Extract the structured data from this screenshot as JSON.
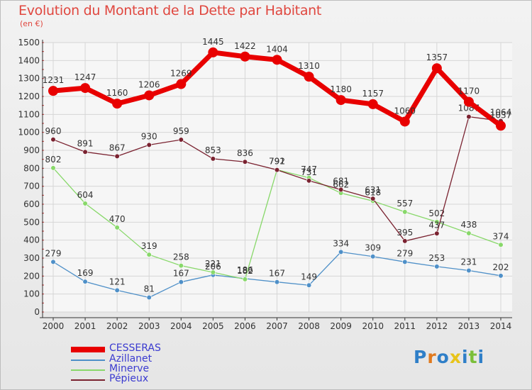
{
  "title": "Evolution du Montant de la Dette par Habitant",
  "subtitle": "(en €)",
  "logo": "Proxiti",
  "chart_data": {
    "type": "line",
    "title": "Evolution du Montant de la Dette par Habitant",
    "ylabel": "(en €)",
    "ylim": [
      0,
      1500
    ],
    "yticks": [
      0,
      100,
      200,
      300,
      400,
      500,
      600,
      700,
      800,
      900,
      1000,
      1100,
      1200,
      1300,
      1400,
      1500
    ],
    "categories": [
      "2000",
      "2001",
      "2002",
      "2003",
      "2004",
      "2005",
      "2006",
      "2007",
      "2008",
      "2009",
      "2010",
      "2011",
      "2012",
      "2013",
      "2014"
    ],
    "grid": true,
    "legend": "bottom-left",
    "series": [
      {
        "name": "CESSERAS",
        "color": "#e80000",
        "values": [
          1231,
          1247,
          1160,
          1206,
          1269,
          1445,
          1422,
          1404,
          1310,
          1180,
          1157,
          1060,
          1357,
          1170,
          1037
        ]
      },
      {
        "name": "Azillanet",
        "color": "#4f90c8",
        "values": [
          279,
          169,
          121,
          81,
          167,
          206,
          186,
          167,
          149,
          334,
          309,
          279,
          253,
          231,
          202
        ]
      },
      {
        "name": "Minerve",
        "color": "#88d86a",
        "values": [
          802,
          604,
          470,
          319,
          258,
          221,
          182,
          792,
          747,
          662,
          618,
          557,
          502,
          438,
          374
        ]
      },
      {
        "name": "Pépieux",
        "color": "#7a2230",
        "values": [
          960,
          891,
          867,
          930,
          959,
          853,
          836,
          791,
          731,
          681,
          631,
          395,
          437,
          1087,
          1064
        ]
      }
    ]
  }
}
